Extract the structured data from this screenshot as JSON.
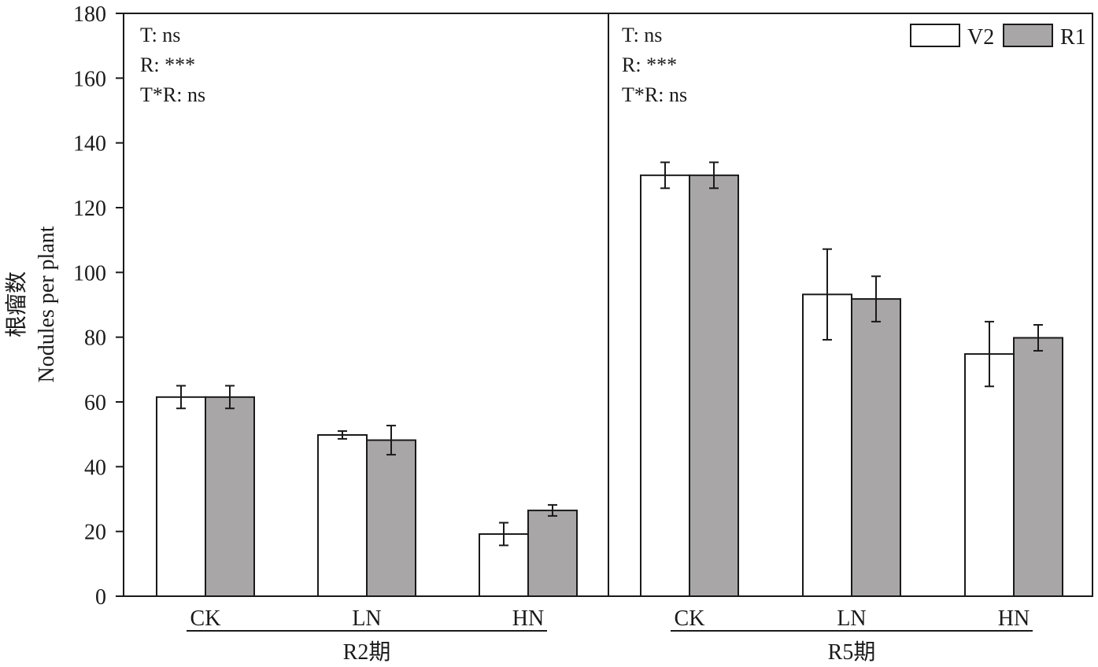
{
  "chart_data": {
    "type": "bar",
    "ylabel_lines": [
      "根瘤数",
      "Nodules per plant"
    ],
    "ylim": [
      0,
      180
    ],
    "yticks": [
      0,
      20,
      40,
      60,
      80,
      100,
      120,
      140,
      160,
      180
    ],
    "ytick_labels": [
      "0",
      "20",
      "40",
      "60",
      "80",
      "100",
      "120",
      "140",
      "160",
      "180"
    ],
    "legend": {
      "position": "top-right",
      "entries": [
        "V2",
        "R1"
      ]
    },
    "series_colors": {
      "V2": "#ffffff",
      "R1": "#a8a6a7"
    },
    "panels": [
      {
        "group_label": "R2期",
        "stats": [
          "T: ns",
          "R: ***",
          "T*R: ns"
        ],
        "categories": [
          "CK",
          "LN",
          "HN"
        ],
        "series": [
          {
            "name": "V2",
            "values": [
              61.5,
              49.8,
              19.2
            ],
            "errors": [
              3.5,
              1.2,
              3.5
            ]
          },
          {
            "name": "R1",
            "values": [
              61.5,
              48.2,
              26.5
            ],
            "errors": [
              3.5,
              4.5,
              1.7
            ]
          }
        ]
      },
      {
        "group_label": "R5期",
        "stats": [
          "T: ns",
          "R: ***",
          "T*R: ns"
        ],
        "categories": [
          "CK",
          "LN",
          "HN"
        ],
        "series": [
          {
            "name": "V2",
            "values": [
              130,
              93.2,
              74.8
            ],
            "errors": [
              4.0,
              14.0,
              10.0
            ]
          },
          {
            "name": "R1",
            "values": [
              130,
              91.8,
              79.8
            ],
            "errors": [
              4.0,
              7.0,
              4.0
            ]
          }
        ]
      }
    ]
  }
}
